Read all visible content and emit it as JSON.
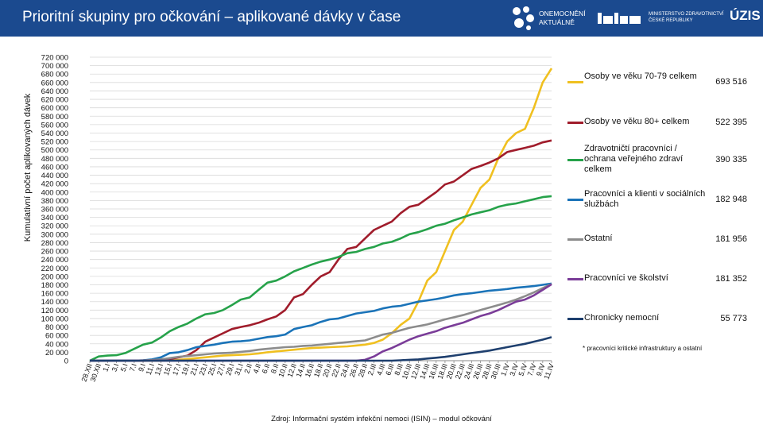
{
  "header": {
    "title": "Prioritní skupiny pro očkování – aplikované dávky v čase",
    "logo_onemocneni_line1": "ONEMOCNĚNÍ",
    "logo_onemocneni_line2": "AKTUÁLNĚ",
    "logo_mzcr_line1": "MINISTERSTVO ZDRAVOTNICTVÍ",
    "logo_mzcr_line2": "ČESKÉ REPUBLIKY",
    "logo_uzis": "ÚZIS",
    "brand_color": "#1b4a8f"
  },
  "footnote": "* pracovníci kritické infrastruktury a ostatní",
  "source": "Zdroj: Informační systém infekční nemoci (ISIN) – modul očkování",
  "chart_data": {
    "type": "line",
    "title": "Prioritní skupiny pro očkování – aplikované dávky v čase",
    "ylabel": "Kumulativní počet aplikovaných dávek",
    "xlabel": "",
    "ylim": [
      0,
      720000
    ],
    "y_tick_step": 20000,
    "grid": true,
    "legend_placement": "right",
    "x": [
      "28.XII",
      "30.XII",
      "1.I",
      "3.I",
      "5.I",
      "7.I",
      "9.I",
      "11.I",
      "13.I",
      "15.I",
      "17.I",
      "19.I",
      "21.I",
      "23.I",
      "25.I",
      "27.I",
      "29.I",
      "31.I",
      "2.II",
      "4.II",
      "6.II",
      "8.II",
      "10.II",
      "12.II",
      "14.II",
      "16.II",
      "18.II",
      "20.II",
      "22.II",
      "24.II",
      "26.II",
      "28.II",
      "2.III",
      "4.III",
      "6.III",
      "8.III",
      "10.III",
      "12.III",
      "14.III",
      "16.III",
      "18.III",
      "20.III",
      "22.III",
      "24.III",
      "26.III",
      "28.III",
      "30.III",
      "1.IV",
      "3.IV",
      "5.IV",
      "7.IV",
      "9.IV",
      "11.IV"
    ],
    "series": [
      {
        "name": "Osoby ve věku 70-79 celkem",
        "value_label": "693 516",
        "color": "#f0c020",
        "values": [
          0,
          0,
          0,
          0,
          0,
          0,
          0,
          0,
          0,
          1000,
          2000,
          4000,
          6000,
          8000,
          10000,
          12000,
          13000,
          14000,
          15000,
          17000,
          20000,
          22000,
          24000,
          26000,
          28000,
          30000,
          31000,
          32000,
          33000,
          34000,
          36000,
          38000,
          42000,
          50000,
          65000,
          85000,
          100000,
          140000,
          190000,
          210000,
          260000,
          310000,
          330000,
          370000,
          410000,
          430000,
          480000,
          520000,
          540000,
          550000,
          600000,
          660000,
          693516
        ]
      },
      {
        "name": "Osoby ve věku 80+ celkem",
        "value_label": "522 395",
        "color": "#a01c2b",
        "values": [
          0,
          0,
          0,
          0,
          0,
          0,
          0,
          1000,
          2000,
          4000,
          8000,
          12000,
          25000,
          45000,
          55000,
          65000,
          75000,
          80000,
          84000,
          90000,
          98000,
          105000,
          120000,
          150000,
          158000,
          180000,
          200000,
          210000,
          240000,
          265000,
          270000,
          290000,
          310000,
          320000,
          330000,
          350000,
          365000,
          370000,
          385000,
          400000,
          418000,
          425000,
          440000,
          455000,
          462000,
          470000,
          480000,
          495000,
          500000,
          505000,
          510000,
          518000,
          522395
        ]
      },
      {
        "name": "Zdravotničtí pracovníci / ochrana veřejného zdraví celkem",
        "value_label": "390 335",
        "color": "#26a24a",
        "values": [
          0,
          10000,
          12000,
          13000,
          18000,
          28000,
          38000,
          43000,
          55000,
          70000,
          80000,
          88000,
          100000,
          110000,
          113000,
          120000,
          132000,
          145000,
          150000,
          168000,
          185000,
          190000,
          200000,
          212000,
          220000,
          228000,
          235000,
          240000,
          246000,
          255000,
          258000,
          265000,
          270000,
          278000,
          282000,
          290000,
          300000,
          305000,
          312000,
          320000,
          325000,
          333000,
          340000,
          347000,
          352000,
          357000,
          365000,
          370000,
          373000,
          378000,
          383000,
          388000,
          390335
        ]
      },
      {
        "name": "Pracovníci a klienti v sociálních službách",
        "value_label": "182 948",
        "color": "#1a73b8",
        "values": [
          0,
          0,
          0,
          0,
          0,
          0,
          1000,
          3000,
          8000,
          18000,
          20000,
          25000,
          32000,
          35000,
          38000,
          42000,
          45000,
          46000,
          48000,
          52000,
          56000,
          58000,
          62000,
          75000,
          80000,
          84000,
          92000,
          98000,
          100000,
          106000,
          112000,
          115000,
          118000,
          124000,
          128000,
          130000,
          135000,
          140000,
          143000,
          146000,
          150000,
          155000,
          158000,
          160000,
          163000,
          166000,
          168000,
          170000,
          173000,
          175000,
          177000,
          180000,
          182948
        ]
      },
      {
        "name": "Ostatní",
        "value_label": "181 956",
        "color": "#8c8c8c",
        "values": [
          0,
          0,
          0,
          0,
          0,
          0,
          500,
          1500,
          3000,
          6000,
          9000,
          11000,
          13000,
          15000,
          17000,
          18000,
          19000,
          21000,
          23000,
          26000,
          28000,
          30000,
          32000,
          33000,
          35000,
          36000,
          38000,
          40000,
          42000,
          44000,
          46000,
          48000,
          55000,
          62000,
          66000,
          72000,
          78000,
          82000,
          86000,
          92000,
          98000,
          103000,
          108000,
          114000,
          120000,
          126000,
          132000,
          138000,
          145000,
          153000,
          162000,
          172000,
          181956
        ]
      },
      {
        "name": "Pracovníci ve školství",
        "value_label": "181 352",
        "color": "#7a3c98",
        "values": [
          0,
          0,
          0,
          0,
          0,
          0,
          0,
          0,
          0,
          0,
          0,
          0,
          0,
          0,
          0,
          0,
          0,
          0,
          0,
          0,
          0,
          0,
          0,
          0,
          0,
          0,
          0,
          0,
          0,
          0,
          0,
          2000,
          10000,
          22000,
          30000,
          40000,
          50000,
          58000,
          64000,
          70000,
          78000,
          84000,
          90000,
          98000,
          106000,
          112000,
          120000,
          130000,
          140000,
          145000,
          155000,
          168000,
          181352
        ]
      },
      {
        "name": "Chronicky nemocní",
        "value_label": "55 773",
        "color": "#1e3f6e",
        "values": [
          0,
          0,
          0,
          0,
          0,
          0,
          0,
          0,
          0,
          0,
          0,
          0,
          0,
          0,
          0,
          0,
          0,
          0,
          0,
          0,
          0,
          0,
          0,
          0,
          0,
          0,
          0,
          0,
          0,
          0,
          0,
          0,
          0,
          0,
          0,
          1000,
          2000,
          3000,
          5000,
          7000,
          9000,
          12000,
          15000,
          18000,
          21000,
          24000,
          28000,
          32000,
          36000,
          40000,
          45000,
          50000,
          55773
        ]
      }
    ]
  }
}
